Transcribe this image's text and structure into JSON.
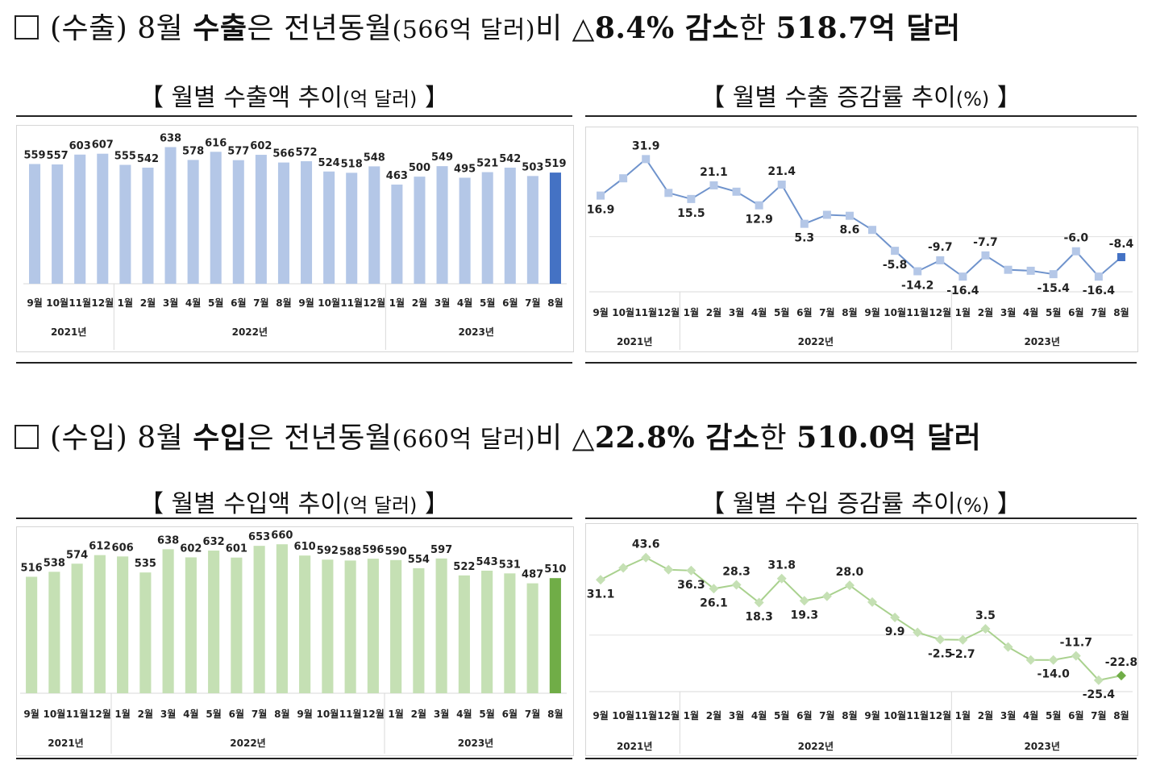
{
  "export_heading": {
    "box": "□",
    "parts": [
      "(수출) 8월 ",
      "수출",
      "은 전년동월",
      "(566억 달러)",
      "비 ",
      "△8.4% 감소",
      "한 ",
      "518.7억 달러"
    ]
  },
  "import_heading": {
    "box": "□",
    "parts": [
      "(수입) 8월 ",
      "수입",
      "은 전년동월",
      "(660억 달러)",
      "비 ",
      "△22.8% 감소",
      "한 ",
      "510.0억 달러"
    ]
  },
  "export_amount_title": {
    "open": "【 월별 수출액 추이",
    "unit": "(억 달러)",
    "close": " 】"
  },
  "export_rate_title": {
    "open": "【 월별 수출 증감률 추이",
    "unit": "(%)",
    "close": " 】"
  },
  "import_amount_title": {
    "open": "【 월별 수입액 추이",
    "unit": "(억 달러)",
    "close": " 】"
  },
  "import_rate_title": {
    "open": "【 월별 수입 증감률 추이",
    "unit": "(%)",
    "close": " 】"
  },
  "colors": {
    "export_bar": "#b4c7e7",
    "export_bar_last": "#4472c4",
    "export_line": "#6f93cc",
    "export_marker": "#b4c7e7",
    "export_marker_last": "#4472c4",
    "import_bar": "#c5e0b4",
    "import_bar_last": "#70ad47",
    "import_line": "#a9d18e",
    "import_marker_last": "#70ad47"
  },
  "chart_data": [
    {
      "id": "export_amount",
      "type": "bar",
      "categories": [
        "9월",
        "10월",
        "11월",
        "12월",
        "1월",
        "2월",
        "3월",
        "4월",
        "5월",
        "6월",
        "7월",
        "8월",
        "9월",
        "10월",
        "11월",
        "12월",
        "1월",
        "2월",
        "3월",
        "4월",
        "5월",
        "6월",
        "7월",
        "8월"
      ],
      "groups": [
        {
          "label": "2021년",
          "count": 4
        },
        {
          "label": "2022년",
          "count": 12
        },
        {
          "label": "2023년",
          "count": 8
        }
      ],
      "values": [
        559,
        557,
        603,
        607,
        555,
        542,
        638,
        578,
        616,
        577,
        602,
        566,
        572,
        524,
        518,
        548,
        463,
        500,
        549,
        495,
        521,
        542,
        503,
        519
      ],
      "ylim": [
        0,
        700
      ]
    },
    {
      "id": "export_rate",
      "type": "line",
      "categories": [
        "9월",
        "10월",
        "11월",
        "12월",
        "1월",
        "2월",
        "3월",
        "4월",
        "5월",
        "6월",
        "7월",
        "8월",
        "9월",
        "10월",
        "11월",
        "12월",
        "1월",
        "2월",
        "3월",
        "4월",
        "5월",
        "6월",
        "7월",
        "8월"
      ],
      "groups": [
        {
          "label": "2021년",
          "count": 4
        },
        {
          "label": "2022년",
          "count": 12
        },
        {
          "label": "2023년",
          "count": 8
        }
      ],
      "values": [
        16.9,
        24.0,
        31.9,
        18.0,
        15.5,
        21.1,
        18.5,
        12.9,
        21.4,
        5.3,
        9.0,
        8.6,
        2.8,
        -5.8,
        -14.2,
        -9.7,
        -16.4,
        -7.7,
        -13.6,
        -14.0,
        -15.4,
        -6.0,
        -16.4,
        -8.4
      ],
      "labels": [
        "16.9",
        "",
        "31.9",
        "",
        "15.5",
        "21.1",
        "",
        "12.9",
        "21.4",
        "5.3",
        "",
        "8.6",
        "",
        "-5.8",
        "-14.2",
        "-9.7",
        "-16.4",
        "-7.7",
        "",
        "",
        "-15.4",
        "-6.0",
        "-16.4",
        "-8.4"
      ],
      "ylim": [
        -20,
        35
      ]
    },
    {
      "id": "import_amount",
      "type": "bar",
      "categories": [
        "9월",
        "10월",
        "11월",
        "12월",
        "1월",
        "2월",
        "3월",
        "4월",
        "5월",
        "6월",
        "7월",
        "8월",
        "9월",
        "10월",
        "11월",
        "12월",
        "1월",
        "2월",
        "3월",
        "4월",
        "5월",
        "6월",
        "7월",
        "8월"
      ],
      "groups": [
        {
          "label": "2021년",
          "count": 4
        },
        {
          "label": "2022년",
          "count": 12
        },
        {
          "label": "2023년",
          "count": 8
        }
      ],
      "values": [
        516,
        538,
        574,
        612,
        606,
        535,
        638,
        602,
        632,
        601,
        653,
        660,
        610,
        592,
        588,
        596,
        590,
        554,
        597,
        522,
        543,
        531,
        487,
        510
      ],
      "ylim": [
        0,
        700
      ]
    },
    {
      "id": "import_rate",
      "type": "line",
      "categories": [
        "9월",
        "10월",
        "11월",
        "12월",
        "1월",
        "2월",
        "3월",
        "4월",
        "5월",
        "6월",
        "7월",
        "8월",
        "9월",
        "10월",
        "11월",
        "12월",
        "1월",
        "2월",
        "3월",
        "4월",
        "5월",
        "6월",
        "7월",
        "8월"
      ],
      "groups": [
        {
          "label": "2021년",
          "count": 4
        },
        {
          "label": "2022년",
          "count": 12
        },
        {
          "label": "2023년",
          "count": 8
        }
      ],
      "values": [
        31.1,
        37.8,
        43.6,
        36.8,
        36.3,
        26.1,
        28.3,
        18.3,
        31.8,
        19.3,
        21.8,
        28.0,
        18.6,
        9.9,
        1.5,
        -2.5,
        -2.7,
        3.5,
        -6.7,
        -14.0,
        -14.0,
        -11.7,
        -25.4,
        -22.8
      ],
      "labels": [
        "31.1",
        "",
        "43.6",
        "",
        "36.3",
        "26.1",
        "28.3",
        "18.3",
        "31.8",
        "19.3",
        "",
        "28.0",
        "",
        "9.9",
        "",
        "-2.5",
        "-2.7",
        "3.5",
        "",
        "",
        "-14.0",
        "-11.7",
        "-25.4",
        "-22.8"
      ],
      "ylim": [
        -30,
        48
      ]
    }
  ]
}
